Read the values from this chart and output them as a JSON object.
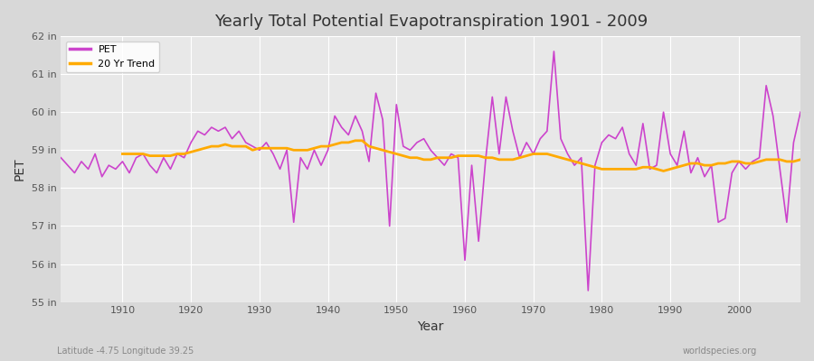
{
  "title": "Yearly Total Potential Evapotranspiration 1901 - 2009",
  "xlabel": "Year",
  "ylabel": "PET",
  "subtitle": "Latitude -4.75 Longitude 39.25",
  "watermark": "worldspecies.org",
  "pet_color": "#cc44cc",
  "trend_color": "#ffaa00",
  "background_color": "#e8e8e8",
  "ylim": [
    55,
    62
  ],
  "ytick_labels": [
    "55 in",
    "56 in",
    "57 in",
    "58 in",
    "59 in",
    "60 in",
    "61 in",
    "62 in"
  ],
  "ytick_values": [
    55,
    56,
    57,
    58,
    59,
    60,
    61,
    62
  ],
  "years": [
    1901,
    1902,
    1903,
    1904,
    1905,
    1906,
    1907,
    1908,
    1909,
    1910,
    1911,
    1912,
    1913,
    1914,
    1915,
    1916,
    1917,
    1918,
    1919,
    1920,
    1921,
    1922,
    1923,
    1924,
    1925,
    1926,
    1927,
    1928,
    1929,
    1930,
    1931,
    1932,
    1933,
    1934,
    1935,
    1936,
    1937,
    1938,
    1939,
    1940,
    1941,
    1942,
    1943,
    1944,
    1945,
    1946,
    1947,
    1948,
    1949,
    1950,
    1951,
    1952,
    1953,
    1954,
    1955,
    1956,
    1957,
    1958,
    1959,
    1960,
    1961,
    1962,
    1963,
    1964,
    1965,
    1966,
    1967,
    1968,
    1969,
    1970,
    1971,
    1972,
    1973,
    1974,
    1975,
    1976,
    1977,
    1978,
    1979,
    1980,
    1981,
    1982,
    1983,
    1984,
    1985,
    1986,
    1987,
    1988,
    1989,
    1990,
    1991,
    1992,
    1993,
    1994,
    1995,
    1996,
    1997,
    1998,
    1999,
    2000,
    2001,
    2002,
    2003,
    2004,
    2005,
    2006,
    2007,
    2008,
    2009
  ],
  "pet_values": [
    58.8,
    58.6,
    58.4,
    58.7,
    58.5,
    58.9,
    58.3,
    58.6,
    58.5,
    58.7,
    58.4,
    58.8,
    58.9,
    58.6,
    58.4,
    58.8,
    58.5,
    58.9,
    58.8,
    59.2,
    59.5,
    59.4,
    59.6,
    59.5,
    59.6,
    59.3,
    59.5,
    59.2,
    59.1,
    59.0,
    59.2,
    58.9,
    58.5,
    59.0,
    57.1,
    58.8,
    58.5,
    59.0,
    58.6,
    59.0,
    59.9,
    59.6,
    59.4,
    59.9,
    59.5,
    58.7,
    60.5,
    59.8,
    57.0,
    60.2,
    59.1,
    59.0,
    59.2,
    59.3,
    59.0,
    58.8,
    58.6,
    58.9,
    58.8,
    56.1,
    58.6,
    56.6,
    58.7,
    60.4,
    58.9,
    60.4,
    59.5,
    58.8,
    59.2,
    58.9,
    59.3,
    59.5,
    61.6,
    59.3,
    58.9,
    58.6,
    58.8,
    55.3,
    58.6,
    59.2,
    59.4,
    59.3,
    59.6,
    58.9,
    58.6,
    59.7,
    58.5,
    58.6,
    60.0,
    58.9,
    58.6,
    59.5,
    58.4,
    58.8,
    58.3,
    58.6,
    57.1,
    57.2,
    58.4,
    58.7,
    58.5,
    58.7,
    58.8,
    60.7,
    59.9,
    58.5,
    57.1,
    59.2,
    60.0
  ],
  "trend_values": [
    null,
    null,
    null,
    null,
    null,
    null,
    null,
    null,
    null,
    58.9,
    58.9,
    58.9,
    58.9,
    58.85,
    58.85,
    58.85,
    58.85,
    58.9,
    58.9,
    58.95,
    59.0,
    59.05,
    59.1,
    59.1,
    59.15,
    59.1,
    59.1,
    59.1,
    59.0,
    59.05,
    59.05,
    59.05,
    59.05,
    59.05,
    59.0,
    59.0,
    59.0,
    59.05,
    59.1,
    59.1,
    59.15,
    59.2,
    59.2,
    59.25,
    59.25,
    59.1,
    59.05,
    59.0,
    58.95,
    58.9,
    58.85,
    58.8,
    58.8,
    58.75,
    58.75,
    58.8,
    58.8,
    58.8,
    58.85,
    58.85,
    58.85,
    58.85,
    58.8,
    58.8,
    58.75,
    58.75,
    58.75,
    58.8,
    58.85,
    58.9,
    58.9,
    58.9,
    58.85,
    58.8,
    58.75,
    58.7,
    58.65,
    58.6,
    58.55,
    58.5,
    58.5,
    58.5,
    58.5,
    58.5,
    58.5,
    58.55,
    58.55,
    58.5,
    58.45,
    58.5,
    58.55,
    58.6,
    58.65,
    58.65,
    58.6,
    58.6,
    58.65,
    58.65,
    58.7,
    58.7,
    58.65,
    58.65,
    58.7,
    58.75,
    58.75,
    58.75,
    58.7,
    58.7,
    58.75
  ]
}
